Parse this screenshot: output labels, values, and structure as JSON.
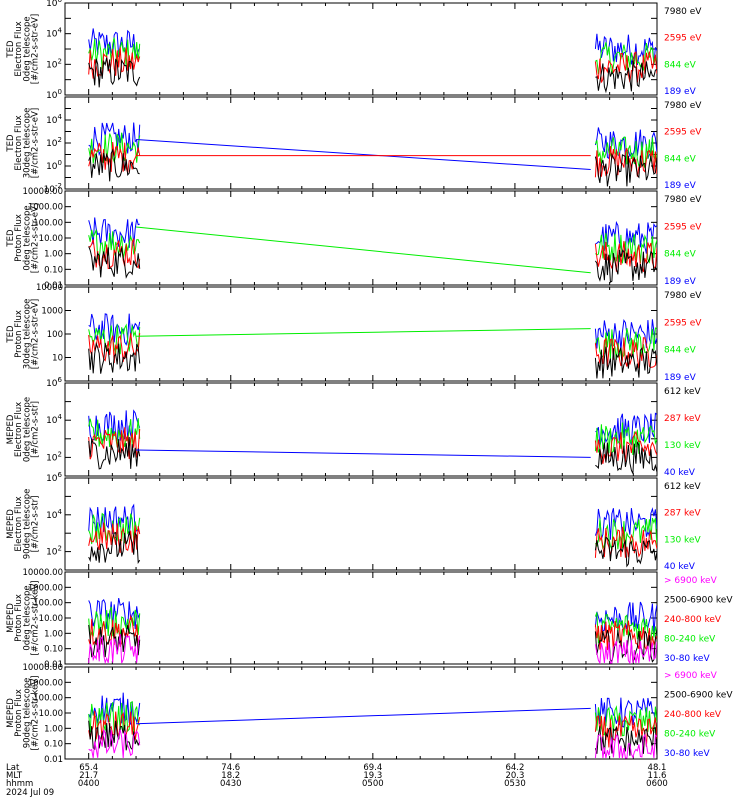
{
  "colors": {
    "blue": "#0000ff",
    "red": "#ff0000",
    "green": "#00ee00",
    "black": "#000000",
    "magenta": "#ff00ff"
  },
  "chart_data": {
    "type": "line",
    "x_ticks": [
      "0400",
      "0430",
      "0500",
      "0530",
      "0600"
    ],
    "footer": {
      "row_labels": [
        "Lat",
        "MLT",
        "hhmm"
      ],
      "date": "2024 Jul 09",
      "columns": [
        {
          "lat": "65.4",
          "mlt": "21.7",
          "hhmm": "0400"
        },
        {
          "lat": "74.6",
          "mlt": "18.2",
          "hhmm": "0430"
        },
        {
          "lat": "69.4",
          "mlt": "19.3",
          "hhmm": "0500"
        },
        {
          "lat": "64.2",
          "mlt": "20.3",
          "hhmm": "0530"
        },
        {
          "lat": "48.1",
          "mlt": "11.6",
          "hhmm": "0600"
        }
      ]
    },
    "panels": [
      {
        "ylabel": [
          "TED",
          "Electron Flux",
          "0deg telescope",
          "[#/cm2-s-str-eV]"
        ],
        "yscale": "log",
        "ylim": [
          1,
          1000000
        ],
        "tick_style": "exp",
        "ticks": [
          0,
          2,
          4,
          6
        ],
        "legend": [
          {
            "text": "7980 eV",
            "color": "black"
          },
          {
            "text": "2595 eV",
            "color": "red"
          },
          {
            "text": "844 eV",
            "color": "green"
          },
          {
            "text": "189 eV",
            "color": "blue"
          }
        ],
        "bridges": []
      },
      {
        "ylabel": [
          "TED",
          "Electron Flux",
          "30deg telescope",
          "[#/cm2-s-str-eV]"
        ],
        "yscale": "log",
        "ylim": [
          0.01,
          1000000
        ],
        "tick_style": "exp",
        "ticks": [
          -2,
          0,
          2,
          4
        ],
        "legend": [
          {
            "text": "7980 eV",
            "color": "black"
          },
          {
            "text": "2595 eV",
            "color": "red"
          },
          {
            "text": "844 eV",
            "color": "green"
          },
          {
            "text": "189 eV",
            "color": "blue"
          }
        ],
        "bridges": [
          {
            "color": "blue",
            "from": [
              "0410",
              200
            ],
            "to": [
              "0546",
              0.5
            ]
          },
          {
            "color": "red",
            "from": [
              "0410",
              8
            ],
            "to": [
              "0546",
              8
            ]
          }
        ]
      },
      {
        "ylabel": [
          "TED",
          "Proton Flux",
          "0deg telescope",
          "[#/cm2-s-str-eV]"
        ],
        "yscale": "log",
        "ylim": [
          0.01,
          10000
        ],
        "tick_style": "dec",
        "ticks": [
          "10000.00",
          "1000.00",
          "100.00",
          "10.00",
          "1.00",
          "0.10",
          "0.01"
        ],
        "legend": [
          {
            "text": "7980 eV",
            "color": "black"
          },
          {
            "text": "2595 eV",
            "color": "red"
          },
          {
            "text": "844 eV",
            "color": "green"
          },
          {
            "text": "189 eV",
            "color": "blue"
          }
        ],
        "bridges": [
          {
            "color": "green",
            "from": [
              "0410",
              50
            ],
            "to": [
              "0546",
              0.06
            ]
          }
        ]
      },
      {
        "ylabel": [
          "TED",
          "Proton Flux",
          "30deg telescope",
          "[#/cm2-s-str-eV]"
        ],
        "yscale": "log",
        "ylim": [
          1,
          10000
        ],
        "tick_style": "dec",
        "ticks": [
          "10000",
          "1000",
          "100",
          "10"
        ],
        "legend": [
          {
            "text": "7980 eV",
            "color": "black"
          },
          {
            "text": "2595 eV",
            "color": "red"
          },
          {
            "text": "844 eV",
            "color": "green"
          },
          {
            "text": "189 eV",
            "color": "blue"
          }
        ],
        "bridges": [
          {
            "color": "green",
            "from": [
              "0410",
              80
            ],
            "to": [
              "0546",
              170
            ]
          }
        ]
      },
      {
        "ylabel": [
          "MEPED",
          "Electron Flux",
          "0deg telescope",
          "[#/cm2-s-str]"
        ],
        "yscale": "log",
        "ylim": [
          10,
          1000000
        ],
        "tick_style": "exp",
        "ticks": [
          2,
          4,
          6
        ],
        "legend": [
          {
            "text": "612 keV",
            "color": "black"
          },
          {
            "text": "287 keV",
            "color": "red"
          },
          {
            "text": "130 keV",
            "color": "green"
          },
          {
            "text": "40 keV",
            "color": "blue"
          }
        ],
        "bridges": [
          {
            "color": "blue",
            "from": [
              "0410",
              250
            ],
            "to": [
              "0546",
              100
            ]
          }
        ]
      },
      {
        "ylabel": [
          "MEPED",
          "Electron Flux",
          "90deg telescope",
          "[#/cm2-s-str]"
        ],
        "yscale": "log",
        "ylim": [
          10,
          1000000
        ],
        "tick_style": "exp",
        "ticks": [
          2,
          4,
          6
        ],
        "legend": [
          {
            "text": "612 keV",
            "color": "black"
          },
          {
            "text": "287 keV",
            "color": "red"
          },
          {
            "text": "130 keV",
            "color": "green"
          },
          {
            "text": "40 keV",
            "color": "blue"
          }
        ],
        "bridges": []
      },
      {
        "ylabel": [
          "MEPED",
          "Proton Flux",
          "0deg telescope",
          "[#/cm2-s-str-keV]"
        ],
        "yscale": "log",
        "ylim": [
          0.01,
          10000
        ],
        "tick_style": "dec",
        "ticks": [
          "10000.00",
          "1000.00",
          "100.00",
          "10.00",
          "1.00",
          "0.10",
          "0.01"
        ],
        "legend": [
          {
            "text": "> 6900 keV",
            "color": "magenta"
          },
          {
            "text": "2500-6900 keV",
            "color": "black"
          },
          {
            "text": "240-800 keV",
            "color": "red"
          },
          {
            "text": "80-240 keV",
            "color": "green"
          },
          {
            "text": "30-80 keV",
            "color": "blue"
          }
        ],
        "bridges": []
      },
      {
        "ylabel": [
          "MEPED",
          "Proton Flux",
          "90deg telescope",
          "[#/cm2-s-str-keV]"
        ],
        "yscale": "log",
        "ylim": [
          0.01,
          10000
        ],
        "tick_style": "dec",
        "ticks": [
          "10000.00",
          "1000.00",
          "100.00",
          "10.00",
          "1.00",
          "0.10",
          "0.01"
        ],
        "legend": [
          {
            "text": "> 6900 keV",
            "color": "magenta"
          },
          {
            "text": "2500-6900 keV",
            "color": "black"
          },
          {
            "text": "240-800 keV",
            "color": "red"
          },
          {
            "text": "80-240 keV",
            "color": "green"
          },
          {
            "text": "30-80 keV",
            "color": "blue"
          }
        ],
        "bridges": [
          {
            "color": "blue",
            "from": [
              "0410",
              2
            ],
            "to": [
              "0546",
              20
            ]
          }
        ]
      }
    ]
  }
}
